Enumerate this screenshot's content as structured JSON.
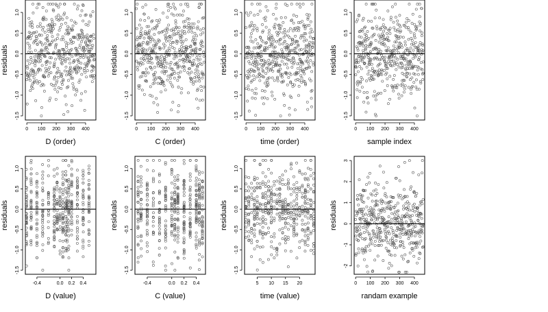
{
  "figure": {
    "colors": {
      "points": "#555555",
      "axes": "#000000",
      "background": "#ffffff"
    }
  },
  "chart_data": [
    {
      "type": "scatter",
      "xlabel": "D (order)",
      "ylabel": "residuals",
      "xlim": [
        -10,
        470
      ],
      "ylim": [
        -1.6,
        1.3
      ],
      "x_ticks": [
        0,
        100,
        200,
        300,
        400
      ],
      "x_tick_labels": [
        "0",
        "100",
        "200",
        "300",
        "400"
      ],
      "y_ticks": [
        -1.5,
        -1.0,
        -0.5,
        0.0,
        0.5,
        1.0
      ],
      "y_tick_labels": [
        "-1.5",
        "-1.0",
        "-0.5",
        "0.0",
        "0.5",
        "1.0"
      ],
      "reference_line_y": 0,
      "grid": false,
      "series": [
        {
          "kind": "order",
          "n": 480,
          "x_range": [
            0,
            460
          ],
          "y_range": [
            -1.5,
            1.2
          ],
          "seed": 11,
          "sd": 0.55
        }
      ]
    },
    {
      "type": "scatter",
      "xlabel": "C (order)",
      "ylabel": "residuals",
      "xlim": [
        -10,
        470
      ],
      "ylim": [
        -1.6,
        1.3
      ],
      "x_ticks": [
        0,
        100,
        200,
        300,
        400
      ],
      "x_tick_labels": [
        "0",
        "100",
        "200",
        "300",
        "400"
      ],
      "y_ticks": [
        -1.5,
        -1.0,
        -0.5,
        0.0,
        0.5,
        1.0
      ],
      "y_tick_labels": [
        "-1.5",
        "-1.0",
        "-0.5",
        "0.0",
        "0.5",
        "1.0"
      ],
      "reference_line_y": 0,
      "grid": false,
      "series": [
        {
          "kind": "order",
          "n": 480,
          "x_range": [
            0,
            460
          ],
          "y_range": [
            -1.5,
            1.2
          ],
          "seed": 23,
          "sd": 0.55
        }
      ]
    },
    {
      "type": "scatter",
      "xlabel": "time (order)",
      "ylabel": "residuals",
      "xlim": [
        -10,
        470
      ],
      "ylim": [
        -1.6,
        1.3
      ],
      "x_ticks": [
        0,
        100,
        200,
        300,
        400
      ],
      "x_tick_labels": [
        "0",
        "100",
        "200",
        "300",
        "400"
      ],
      "y_ticks": [
        -1.5,
        -1.0,
        -0.5,
        0.0,
        0.5,
        1.0
      ],
      "y_tick_labels": [
        "-1.5",
        "-1.0",
        "-0.5",
        "0.0",
        "0.5",
        "1.0"
      ],
      "reference_line_y": 0,
      "grid": false,
      "series": [
        {
          "kind": "order",
          "n": 480,
          "x_range": [
            0,
            460
          ],
          "y_range": [
            -1.5,
            1.2
          ],
          "seed": 37,
          "sd": 0.55
        }
      ]
    },
    {
      "type": "scatter",
      "xlabel": "sample index",
      "ylabel": "residuals",
      "xlim": [
        -10,
        470
      ],
      "ylim": [
        -1.6,
        1.3
      ],
      "x_ticks": [
        0,
        100,
        200,
        300,
        400
      ],
      "x_tick_labels": [
        "0",
        "100",
        "200",
        "300",
        "400"
      ],
      "y_ticks": [
        -1.5,
        -1.0,
        -0.5,
        0.0,
        0.5,
        1.0
      ],
      "y_tick_labels": [
        "-1.5",
        "-1.0",
        "-0.5",
        "0.0",
        "0.5",
        "1.0"
      ],
      "reference_line_y": 0,
      "grid": false,
      "series": [
        {
          "kind": "order",
          "n": 480,
          "x_range": [
            0,
            460
          ],
          "y_range": [
            -1.5,
            1.2
          ],
          "seed": 41,
          "sd": 0.55
        }
      ]
    },
    {
      "type": "scatter",
      "xlabel": "D (value)",
      "ylabel": "residuals",
      "xlim": [
        -0.6,
        0.62
      ],
      "ylim": [
        -1.6,
        1.3
      ],
      "x_ticks": [
        -0.4,
        0.0,
        0.2,
        0.4
      ],
      "x_tick_labels": [
        "-0.4",
        "0.0",
        "0.2",
        "0.4"
      ],
      "y_ticks": [
        -1.5,
        -1.0,
        -0.5,
        0.0,
        0.5,
        1.0
      ],
      "y_tick_labels": [
        "-1.5",
        "-1.0",
        "-0.5",
        "0.0",
        "0.5",
        "1.0"
      ],
      "reference_line_y": 0,
      "grid": false,
      "series": [
        {
          "kind": "levels",
          "n": 480,
          "levels": [
            -0.58,
            -0.5,
            -0.4,
            -0.3,
            -0.2,
            -0.1,
            -0.05,
            0.0,
            0.05,
            0.1,
            0.12,
            0.15,
            0.2,
            0.3,
            0.4,
            0.5
          ],
          "y_range": [
            -1.5,
            1.2
          ],
          "seed": 53,
          "sd": 0.55
        }
      ]
    },
    {
      "type": "scatter",
      "xlabel": "C (value)",
      "ylabel": "residuals",
      "xlim": [
        -0.6,
        0.55
      ],
      "ylim": [
        -1.6,
        1.3
      ],
      "x_ticks": [
        -0.4,
        0.0,
        0.2,
        0.4
      ],
      "x_tick_labels": [
        "-0.4",
        "0.0",
        "0.2",
        "0.4"
      ],
      "y_ticks": [
        -1.5,
        -1.0,
        -0.5,
        0.0,
        0.5,
        1.0
      ],
      "y_tick_labels": [
        "-1.5",
        "-1.0",
        "-0.5",
        "0.0",
        "0.5",
        "1.0"
      ],
      "reference_line_y": 0,
      "grid": false,
      "series": [
        {
          "kind": "levels",
          "n": 480,
          "levels": [
            -0.55,
            -0.5,
            -0.4,
            -0.3,
            -0.2,
            -0.1,
            0.0,
            0.05,
            0.1,
            0.2,
            0.3,
            0.4,
            0.45,
            0.5
          ],
          "y_range": [
            -1.5,
            1.2
          ],
          "seed": 67,
          "sd": 0.55
        }
      ]
    },
    {
      "type": "scatter",
      "xlabel": "time (value)",
      "ylabel": "residuals",
      "xlim": [
        0.5,
        25.5
      ],
      "ylim": [
        -1.6,
        1.3
      ],
      "x_ticks": [
        5,
        10,
        15,
        20
      ],
      "x_tick_labels": [
        "5",
        "10",
        "15",
        "20"
      ],
      "y_ticks": [
        -1.5,
        -1.0,
        -0.5,
        0.0,
        0.5,
        1.0
      ],
      "y_tick_labels": [
        "-1.5",
        "-1.0",
        "-0.5",
        "0.0",
        "0.5",
        "1.0"
      ],
      "reference_line_y": 0,
      "grid": false,
      "series": [
        {
          "kind": "levels",
          "n": 480,
          "levels": [
            1,
            2,
            3,
            4,
            5,
            6,
            7,
            8,
            9,
            10,
            11,
            12,
            13,
            14,
            15,
            16,
            17,
            18,
            19,
            20,
            21,
            22,
            23,
            24,
            25
          ],
          "y_range": [
            -1.5,
            1.2
          ],
          "seed": 79,
          "sd": 0.55
        }
      ]
    },
    {
      "type": "scatter",
      "xlabel": "randam example",
      "ylabel": "residuals",
      "xlim": [
        -10,
        470
      ],
      "ylim": [
        -2.4,
        3.2
      ],
      "x_ticks": [
        0,
        100,
        200,
        300,
        400
      ],
      "x_tick_labels": [
        "0",
        "100",
        "200",
        "300",
        "400"
      ],
      "y_ticks": [
        -2,
        -1,
        0,
        1,
        2,
        3
      ],
      "y_tick_labels": [
        "-2",
        "-1",
        "0",
        "1",
        "2",
        "3"
      ],
      "reference_line_y": 0,
      "grid": false,
      "series": [
        {
          "kind": "order",
          "n": 480,
          "x_range": [
            0,
            460
          ],
          "y_range": [
            -2.3,
            3.0
          ],
          "seed": 97,
          "sd": 1.0
        }
      ]
    }
  ]
}
